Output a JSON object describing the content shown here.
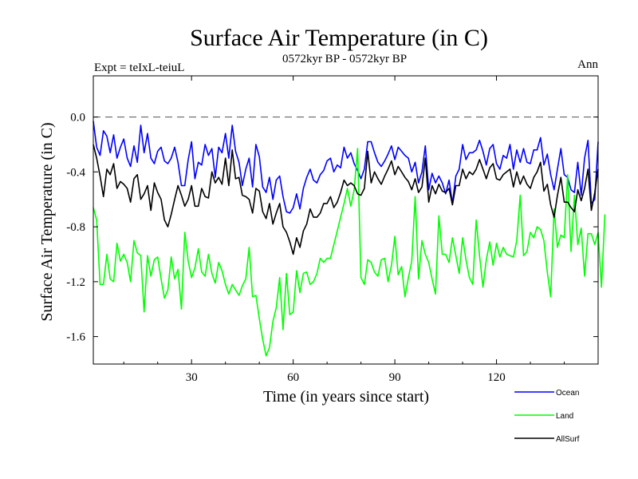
{
  "chart_data": {
    "type": "line",
    "title": "Surface Air Temperature (in C)",
    "subtitle": "0572kyr BP - 0572kyr BP",
    "left_label": "Expt = teIxL-teiuL",
    "right_label": "Ann",
    "xlabel": "Time (in years since start)",
    "ylabel": "Surface Air Temperature (in C)",
    "xlim": [
      1,
      150
    ],
    "ylim": [
      -1.8,
      0.3
    ],
    "x_ticks": [
      30,
      60,
      90,
      120
    ],
    "y_ticks": [
      0.0,
      -0.4,
      -0.8,
      -1.2,
      -1.6
    ],
    "y_tick_labels": [
      "0.0",
      "-0.4",
      "-0.8",
      "-1.2",
      "-1.6"
    ],
    "reference_line": {
      "y": 0.0,
      "style": "dashed"
    },
    "legend_position": "bottom-right",
    "series": [
      {
        "name": "Ocean",
        "color": "#0000ff",
        "values": [
          -0.03,
          -0.22,
          -0.28,
          -0.1,
          -0.14,
          -0.26,
          -0.13,
          -0.3,
          -0.22,
          -0.16,
          -0.3,
          -0.36,
          -0.21,
          -0.33,
          -0.06,
          -0.26,
          -0.12,
          -0.3,
          -0.34,
          -0.25,
          -0.22,
          -0.32,
          -0.34,
          -0.3,
          -0.22,
          -0.33,
          -0.5,
          -0.5,
          -0.31,
          -0.18,
          -0.45,
          -0.33,
          -0.35,
          -0.2,
          -0.28,
          -0.23,
          -0.44,
          -0.22,
          -0.26,
          -0.12,
          -0.3,
          -0.06,
          -0.25,
          -0.33,
          -0.5,
          -0.38,
          -0.3,
          -0.51,
          -0.2,
          -0.29,
          -0.51,
          -0.55,
          -0.44,
          -0.6,
          -0.46,
          -0.43,
          -0.58,
          -0.69,
          -0.7,
          -0.66,
          -0.56,
          -0.67,
          -0.52,
          -0.44,
          -0.38,
          -0.46,
          -0.48,
          -0.42,
          -0.39,
          -0.32,
          -0.3,
          -0.4,
          -0.35,
          -0.37,
          -0.22,
          -0.3,
          -0.26,
          -0.34,
          -0.39,
          -0.45,
          -0.38,
          -0.18,
          -0.18,
          -0.26,
          -0.33,
          -0.36,
          -0.32,
          -0.27,
          -0.21,
          -0.31,
          -0.22,
          -0.25,
          -0.28,
          -0.3,
          -0.4,
          -0.33,
          -0.48,
          -0.4,
          -0.21,
          -0.53,
          -0.41,
          -0.48,
          -0.43,
          -0.48,
          -0.56,
          -0.46,
          -0.63,
          -0.43,
          -0.38,
          -0.2,
          -0.31,
          -0.26,
          -0.26,
          -0.24,
          -0.17,
          -0.25,
          -0.35,
          -0.23,
          -0.2,
          -0.34,
          -0.38,
          -0.28,
          -0.3,
          -0.2,
          -0.38,
          -0.24,
          -0.33,
          -0.23,
          -0.33,
          -0.34,
          -0.24,
          -0.24,
          -0.15,
          -0.35,
          -0.27,
          -0.42,
          -0.53,
          -0.38,
          -0.23,
          -0.42,
          -0.44,
          -0.53,
          -0.55,
          -0.33,
          -0.57,
          -0.3,
          -0.17,
          -0.63,
          -0.6,
          -0.18
        ]
      },
      {
        "name": "Land",
        "color": "#00ff00",
        "values": [
          -0.66,
          -0.75,
          -1.22,
          -1.22,
          -1.0,
          -1.18,
          -1.2,
          -0.92,
          -1.05,
          -1.0,
          -1.06,
          -1.2,
          -0.9,
          -0.99,
          -1.01,
          -1.42,
          -1.01,
          -1.16,
          -1.04,
          -1.02,
          -1.18,
          -1.32,
          -1.26,
          -1.02,
          -1.18,
          -1.11,
          -1.4,
          -0.84,
          -1.05,
          -1.17,
          -1.1,
          -0.96,
          -1.13,
          -1.16,
          -1.0,
          -1.14,
          -1.21,
          -1.06,
          -1.12,
          -1.22,
          -1.29,
          -1.22,
          -1.26,
          -1.3,
          -1.23,
          -1.18,
          -0.95,
          -1.31,
          -1.3,
          -1.47,
          -1.62,
          -1.74,
          -1.68,
          -1.49,
          -1.39,
          -1.17,
          -1.55,
          -1.14,
          -1.44,
          -1.42,
          -1.12,
          -1.28,
          -1.14,
          -1.13,
          -1.22,
          -1.2,
          -1.14,
          -1.03,
          -1.06,
          -1.03,
          -1.03,
          -0.93,
          -0.83,
          -0.73,
          -0.63,
          -0.52,
          -0.65,
          -0.53,
          -0.23,
          -1.17,
          -1.22,
          -1.04,
          -1.06,
          -1.13,
          -1.16,
          -1.04,
          -1.03,
          -1.2,
          -1.08,
          -0.87,
          -1.15,
          -1.09,
          -1.31,
          -1.17,
          -1.05,
          -0.58,
          -1.18,
          -0.9,
          -1.0,
          -1.06,
          -1.18,
          -1.29,
          -0.72,
          -1.0,
          -1.0,
          -1.06,
          -0.88,
          -1.01,
          -1.14,
          -0.88,
          -1.04,
          -1.17,
          -1.22,
          -0.75,
          -1.01,
          -1.24,
          -1.04,
          -0.91,
          -1.08,
          -0.92,
          -1.02,
          -0.95,
          -1.0,
          -1.01,
          -1.02,
          -0.9,
          -0.57,
          -1.01,
          -0.98,
          -0.84,
          -0.88,
          -0.8,
          -0.82,
          -0.9,
          -1.13,
          -1.31,
          -0.67,
          -0.95,
          -0.86,
          -0.88,
          -0.42,
          -0.98,
          -0.57,
          -0.93,
          -0.81,
          -1.16,
          -0.85,
          -0.85,
          -0.93,
          -0.84,
          -1.24,
          -0.71
        ]
      },
      {
        "name": "AllSurf",
        "color": "#000000",
        "values": [
          -0.2,
          -0.3,
          -0.43,
          -0.58,
          -0.38,
          -0.42,
          -0.34,
          -0.52,
          -0.47,
          -0.49,
          -0.52,
          -0.62,
          -0.45,
          -0.42,
          -0.6,
          -0.56,
          -0.5,
          -0.68,
          -0.48,
          -0.55,
          -0.6,
          -0.75,
          -0.8,
          -0.71,
          -0.6,
          -0.5,
          -0.57,
          -0.65,
          -0.6,
          -0.5,
          -0.65,
          -0.65,
          -0.52,
          -0.58,
          -0.59,
          -0.4,
          -0.48,
          -0.44,
          -0.49,
          -0.3,
          -0.5,
          -0.24,
          -0.45,
          -0.44,
          -0.57,
          -0.58,
          -0.6,
          -0.7,
          -0.52,
          -0.54,
          -0.69,
          -0.74,
          -0.63,
          -0.78,
          -0.7,
          -0.63,
          -0.8,
          -0.84,
          -0.91,
          -1.0,
          -0.88,
          -0.95,
          -0.83,
          -0.78,
          -0.67,
          -0.73,
          -0.73,
          -0.7,
          -0.63,
          -0.63,
          -0.58,
          -0.66,
          -0.62,
          -0.55,
          -0.46,
          -0.5,
          -0.48,
          -0.5,
          -0.56,
          -0.57,
          -0.52,
          -0.25,
          -0.48,
          -0.4,
          -0.45,
          -0.49,
          -0.43,
          -0.38,
          -0.32,
          -0.42,
          -0.36,
          -0.4,
          -0.44,
          -0.47,
          -0.53,
          -0.45,
          -0.55,
          -0.51,
          -0.3,
          -0.62,
          -0.5,
          -0.56,
          -0.49,
          -0.54,
          -0.55,
          -0.52,
          -0.64,
          -0.5,
          -0.5,
          -0.38,
          -0.45,
          -0.4,
          -0.42,
          -0.38,
          -0.31,
          -0.38,
          -0.45,
          -0.37,
          -0.34,
          -0.45,
          -0.46,
          -0.42,
          -0.4,
          -0.38,
          -0.51,
          -0.4,
          -0.49,
          -0.43,
          -0.49,
          -0.52,
          -0.44,
          -0.4,
          -0.33,
          -0.54,
          -0.49,
          -0.64,
          -0.73,
          -0.57,
          -0.44,
          -0.62,
          -0.62,
          -0.66,
          -0.69,
          -0.53,
          -0.61,
          -0.52,
          -0.38,
          -0.68,
          -0.55,
          -0.38
        ]
      }
    ]
  }
}
